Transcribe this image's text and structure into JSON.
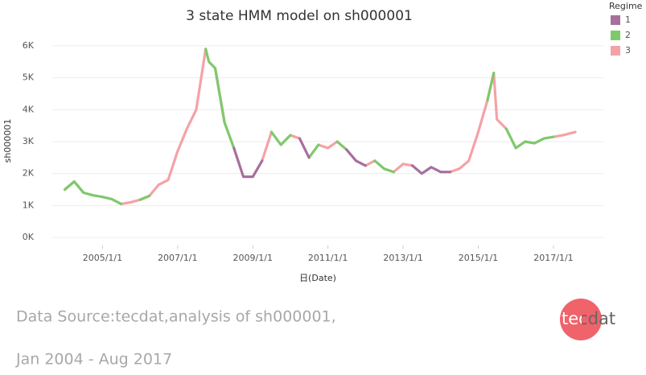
{
  "chart_data": {
    "type": "line",
    "title": "3 state HMM model on sh000001",
    "x_label": "日(Date)",
    "y_label": "sh000001",
    "legend_title": "Regime",
    "legend_position": "top-right",
    "grid": true,
    "xlim": [
      "2003/9/1",
      "2018/5/1"
    ],
    "xticks": [
      "2005/1/1",
      "2007/1/1",
      "2009/1/1",
      "2011/1/1",
      "2013/1/1",
      "2015/1/1",
      "2017/1/1"
    ],
    "ylim": [
      -250,
      6300
    ],
    "yticks": [
      {
        "value": 0,
        "label": "0K"
      },
      {
        "value": 1000,
        "label": "1K"
      },
      {
        "value": 2000,
        "label": "2K"
      },
      {
        "value": 3000,
        "label": "3K"
      },
      {
        "value": 4000,
        "label": "4K"
      },
      {
        "value": 5000,
        "label": "5K"
      },
      {
        "value": 6000,
        "label": "6K"
      }
    ],
    "x": [
      "2004/1/1",
      "2004/4/1",
      "2004/7/1",
      "2004/10/1",
      "2005/1/1",
      "2005/4/1",
      "2005/7/1",
      "2005/10/1",
      "2006/1/1",
      "2006/4/1",
      "2006/7/1",
      "2006/10/1",
      "2007/1/1",
      "2007/4/1",
      "2007/7/1",
      "2007/10/1",
      "2007/11/1",
      "2008/1/1",
      "2008/4/1",
      "2008/7/1",
      "2008/10/1",
      "2009/1/1",
      "2009/4/1",
      "2009/7/1",
      "2009/10/1",
      "2010/1/1",
      "2010/4/1",
      "2010/7/1",
      "2010/10/1",
      "2011/1/1",
      "2011/4/1",
      "2011/7/1",
      "2011/10/1",
      "2012/1/1",
      "2012/4/1",
      "2012/7/1",
      "2012/10/1",
      "2013/1/1",
      "2013/4/1",
      "2013/7/1",
      "2013/10/1",
      "2014/1/1",
      "2014/4/1",
      "2014/7/1",
      "2014/10/1",
      "2015/1/1",
      "2015/4/1",
      "2015/6/1",
      "2015/7/1",
      "2015/10/1",
      "2016/1/1",
      "2016/4/1",
      "2016/7/1",
      "2016/10/1",
      "2017/1/1",
      "2017/4/1",
      "2017/8/1"
    ],
    "series": [
      {
        "name": "1",
        "color": "#a6709c",
        "values": [
          null,
          null,
          null,
          null,
          null,
          null,
          null,
          null,
          null,
          null,
          null,
          null,
          null,
          null,
          null,
          null,
          null,
          null,
          null,
          2800,
          1900,
          1900,
          2400,
          null,
          null,
          null,
          3100,
          2500,
          null,
          null,
          null,
          2750,
          2400,
          2250,
          null,
          null,
          null,
          null,
          2250,
          2000,
          2200,
          2050,
          2050,
          null,
          null,
          null,
          null,
          null,
          null,
          null,
          null,
          null,
          null,
          null,
          null,
          null,
          null
        ]
      },
      {
        "name": "2",
        "color": "#80c86c",
        "values": [
          1500,
          1750,
          1400,
          1320,
          1270,
          1200,
          1050,
          null,
          1180,
          1300,
          null,
          null,
          null,
          null,
          null,
          5900,
          5500,
          5300,
          3600,
          2800,
          null,
          null,
          null,
          3300,
          2900,
          3200,
          null,
          2500,
          2900,
          null,
          3000,
          2750,
          null,
          null,
          2400,
          2150,
          2050,
          null,
          null,
          null,
          null,
          null,
          null,
          null,
          null,
          null,
          4300,
          5150,
          null,
          3400,
          2800,
          3000,
          2950,
          3100,
          3150,
          null,
          null
        ]
      },
      {
        "name": "3",
        "color": "#f5a2a6",
        "values": [
          1500,
          1750,
          1400,
          null,
          null,
          null,
          1050,
          1100,
          1180,
          1300,
          1650,
          1800,
          2700,
          3400,
          4000,
          5900,
          null,
          5300,
          3600,
          null,
          null,
          null,
          2400,
          3300,
          null,
          3200,
          3100,
          null,
          2900,
          2800,
          3000,
          null,
          null,
          2250,
          2400,
          null,
          2050,
          2300,
          2250,
          null,
          null,
          null,
          2050,
          2150,
          2400,
          3300,
          4300,
          5150,
          3700,
          3400,
          null,
          3000,
          2950,
          null,
          3150,
          3200,
          3300
        ]
      }
    ],
    "annotations": [
      "Data Source:tecdat,analysis of sh000001,",
      "Jan 2004 - Aug 2017"
    ],
    "logo": "tecdat"
  }
}
